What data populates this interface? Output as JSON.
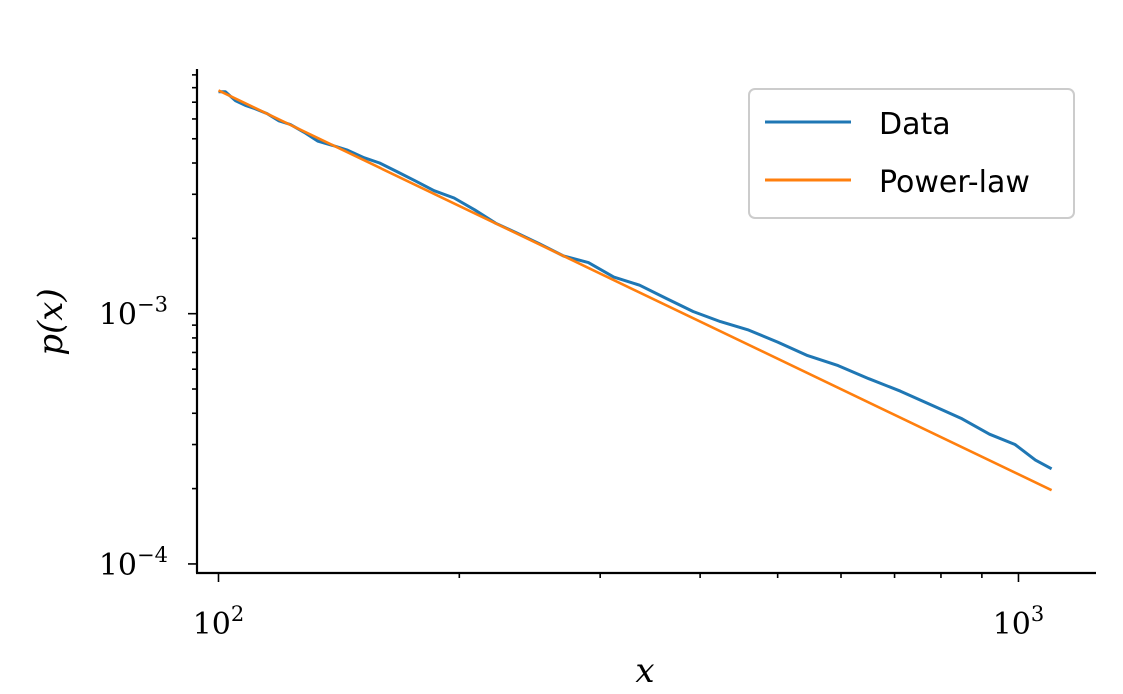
{
  "chart_data": {
    "type": "line",
    "xscale": "log",
    "yscale": "log",
    "xlim": [
      94,
      1250
    ],
    "ylim": [
      9.2e-05,
      0.0095
    ],
    "xlabel": "x",
    "ylabel": "p(x)",
    "x_ticks": [
      {
        "value": 100,
        "base": "10",
        "exp": "2"
      },
      {
        "value": 1000,
        "base": "10",
        "exp": "3"
      }
    ],
    "y_ticks": [
      {
        "value": 0.0001,
        "base": "10",
        "exp": "−4"
      },
      {
        "value": 0.001,
        "base": "10",
        "exp": "−3"
      }
    ],
    "grid": false,
    "legend_position": "top-right",
    "series": [
      {
        "name": "Data",
        "color": "#1f77b4",
        "x": [
          100,
          102,
          105,
          108,
          111,
          115,
          119,
          123,
          128,
          133,
          139,
          145,
          152,
          159,
          167,
          176,
          186,
          197,
          209,
          222,
          236,
          252,
          270,
          290,
          312,
          336,
          363,
          392,
          424,
          460,
          500,
          545,
          595,
          650,
          712,
          780,
          850,
          920,
          990,
          1050,
          1100
        ],
        "y": [
          0.0077,
          0.0077,
          0.0071,
          0.0068,
          0.0066,
          0.0063,
          0.0059,
          0.0057,
          0.0053,
          0.0049,
          0.0047,
          0.0045,
          0.0042,
          0.004,
          0.0037,
          0.0034,
          0.0031,
          0.0029,
          0.0026,
          0.0023,
          0.0021,
          0.0019,
          0.0017,
          0.0016,
          0.0014,
          0.0013,
          0.00115,
          0.00102,
          0.00093,
          0.00086,
          0.00077,
          0.00068,
          0.00062,
          0.00055,
          0.00049,
          0.00043,
          0.00038,
          0.00033,
          0.0003,
          0.00026,
          0.00024
        ]
      },
      {
        "name": "Power-law",
        "color": "#ff7f0e",
        "x": [
          100,
          1100
        ],
        "y": [
          0.0078,
          0.000197
        ]
      }
    ]
  }
}
